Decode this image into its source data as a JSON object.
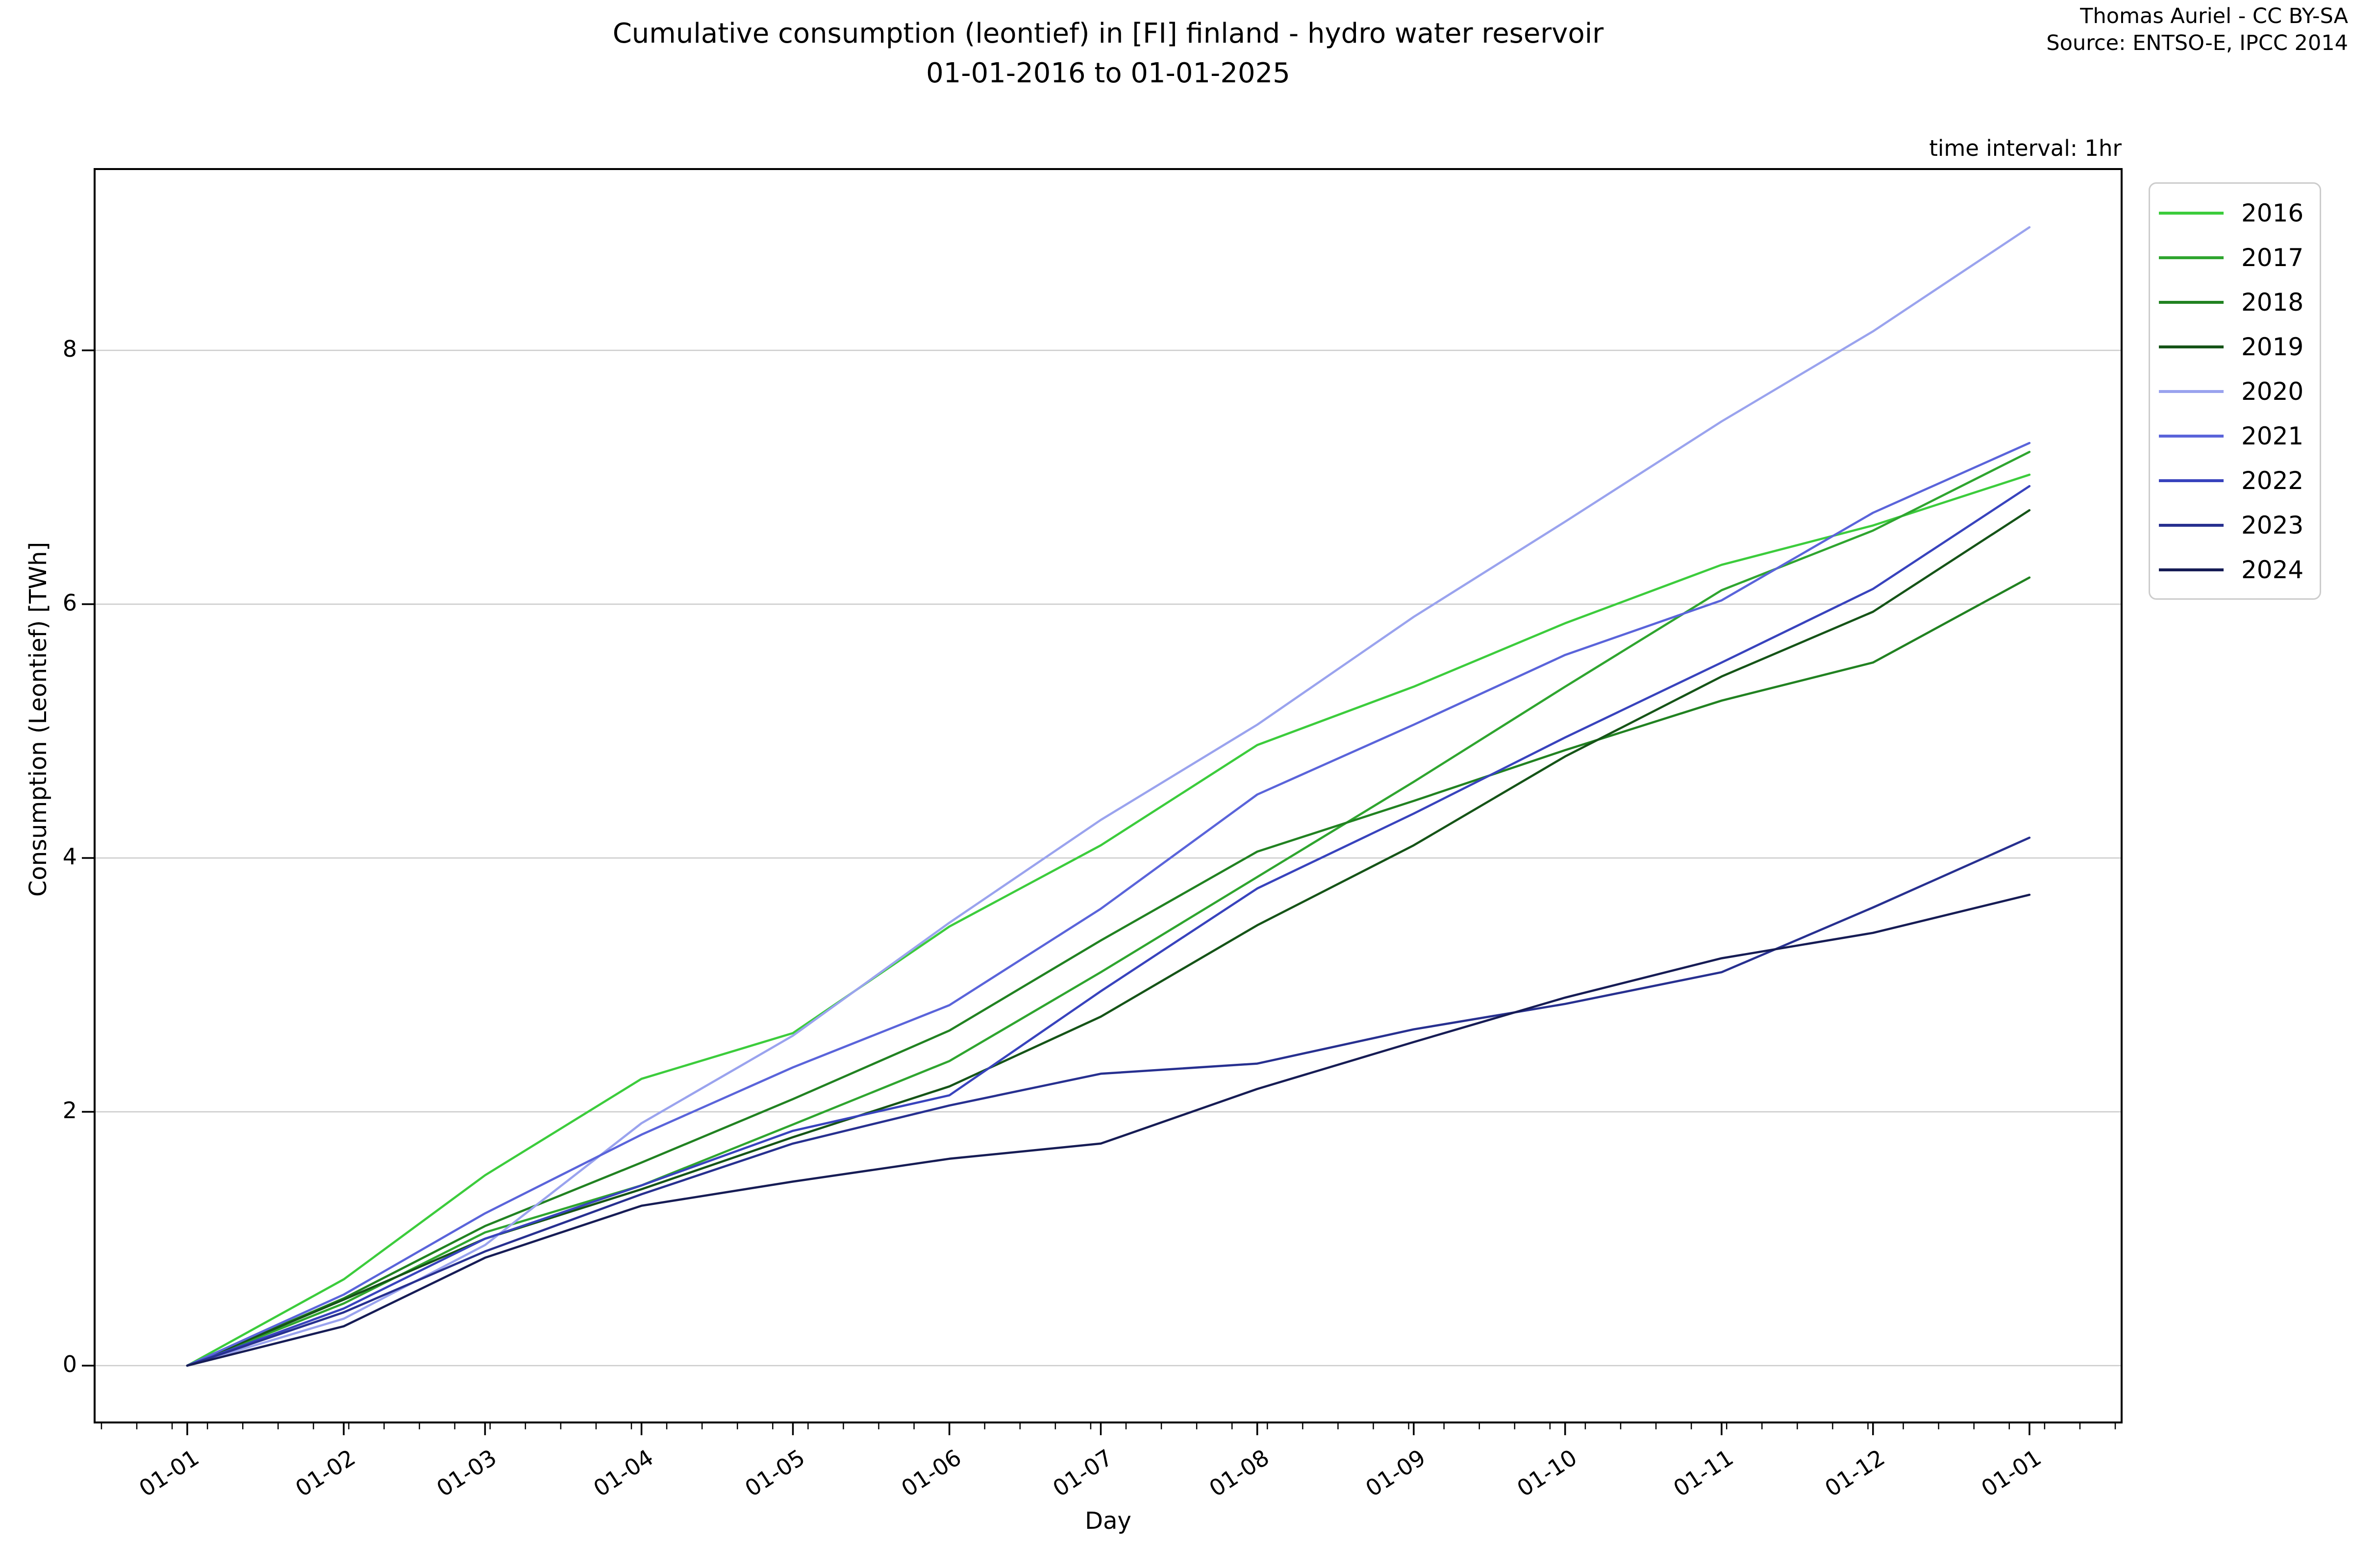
{
  "header": {
    "title_line1": "Cumulative consumption (leontief) in [FI] finland - hydro water reservoir",
    "title_line2": "01-01-2016 to 01-01-2025",
    "attribution_line1": "Thomas Auriel - CC BY-SA",
    "attribution_line2": "Source: ENTSO-E, IPCC 2014",
    "time_interval_note": "time interval: 1hr"
  },
  "chart_data": {
    "type": "line",
    "title": "Cumulative consumption (leontief) in [FI] finland - hydro water reservoir 01-01-2016 to 01-01-2025",
    "xlabel": "Day",
    "ylabel": "Consumption (Leontief) [TWh]",
    "x_tick_labels": [
      "01-01",
      "01-02",
      "01-03",
      "01-04",
      "01-05",
      "01-06",
      "01-07",
      "01-08",
      "01-09",
      "01-10",
      "01-11",
      "01-12",
      "01-01"
    ],
    "x_tick_days": [
      0,
      31,
      59,
      90,
      120,
      151,
      181,
      212,
      243,
      273,
      304,
      334,
      365
    ],
    "minor_tick_spacing_days": 7,
    "y_ticks": [
      0,
      2,
      4,
      6,
      8
    ],
    "ylim": [
      -0.45,
      9.43
    ],
    "xlim_days": [
      -18.4,
      383.3
    ],
    "grid": "horizontal major gridlines only",
    "grid_color": "#cccccc",
    "legend_position": "upper right outside axes",
    "units": "TWh",
    "series": [
      {
        "name": "2016",
        "color": "#3ccc3c",
        "values": [
          0,
          0.68,
          1.5,
          2.26,
          2.62,
          3.46,
          4.1,
          4.89,
          5.35,
          5.85,
          6.31,
          6.62,
          7.02
        ]
      },
      {
        "name": "2017",
        "color": "#2fa52f",
        "values": [
          0,
          0.49,
          1.05,
          1.42,
          1.9,
          2.4,
          3.1,
          3.85,
          4.6,
          5.35,
          6.11,
          6.58,
          7.2
        ]
      },
      {
        "name": "2018",
        "color": "#218221",
        "values": [
          0,
          0.53,
          1.1,
          1.6,
          2.1,
          2.64,
          3.35,
          4.05,
          4.45,
          4.85,
          5.24,
          5.54,
          6.21
        ]
      },
      {
        "name": "2019",
        "color": "#155417",
        "values": [
          0,
          0.52,
          1.0,
          1.39,
          1.8,
          2.2,
          2.75,
          3.47,
          4.1,
          4.8,
          5.43,
          5.94,
          6.74
        ]
      },
      {
        "name": "2020",
        "color": "#9aa3ee",
        "values": [
          0,
          0.37,
          0.95,
          1.91,
          2.6,
          3.49,
          4.3,
          5.05,
          5.9,
          6.65,
          7.44,
          8.15,
          8.97
        ]
      },
      {
        "name": "2021",
        "color": "#5a64da",
        "values": [
          0,
          0.56,
          1.2,
          1.82,
          2.35,
          2.84,
          3.6,
          4.5,
          5.05,
          5.6,
          6.03,
          6.72,
          7.27
        ]
      },
      {
        "name": "2022",
        "color": "#3843bd",
        "values": [
          0,
          0.45,
          1.0,
          1.42,
          1.85,
          2.13,
          2.95,
          3.76,
          4.35,
          4.95,
          5.54,
          6.12,
          6.93
        ]
      },
      {
        "name": "2023",
        "color": "#273090",
        "values": [
          0,
          0.42,
          0.9,
          1.35,
          1.75,
          2.05,
          2.3,
          2.38,
          2.65,
          2.85,
          3.1,
          3.61,
          4.16
        ]
      },
      {
        "name": "2024",
        "color": "#161c55",
        "values": [
          0,
          0.31,
          0.85,
          1.26,
          1.45,
          1.63,
          1.75,
          2.18,
          2.55,
          2.9,
          3.21,
          3.41,
          3.71
        ]
      }
    ]
  }
}
